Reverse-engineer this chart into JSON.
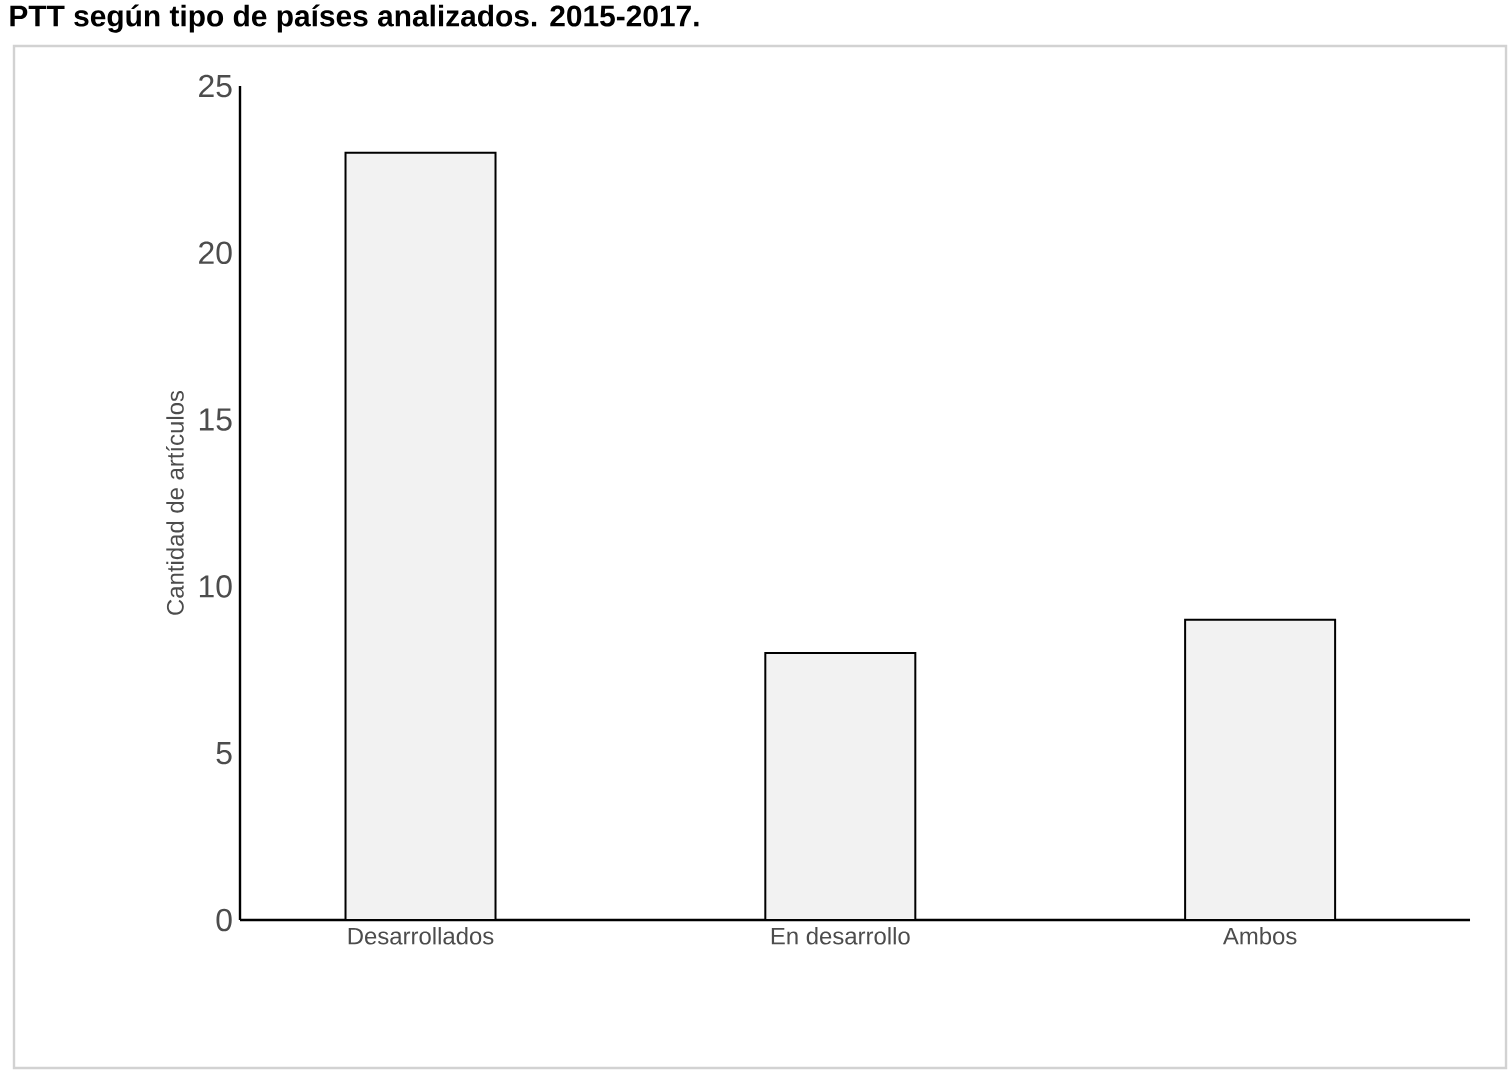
{
  "chart_data": {
    "type": "bar",
    "title": "PTT según tipo de países analizados. 2015-2017.",
    "ylabel": "Cantidad de artículos",
    "categories": [
      "Desarrollados",
      "En desarrollo",
      "Ambos"
    ],
    "values": [
      23,
      8,
      9
    ],
    "color": "#f2f2f2",
    "ylim": [
      0,
      25
    ],
    "yticks": [
      0,
      5,
      10,
      15,
      20,
      25
    ],
    "grid": false
  }
}
